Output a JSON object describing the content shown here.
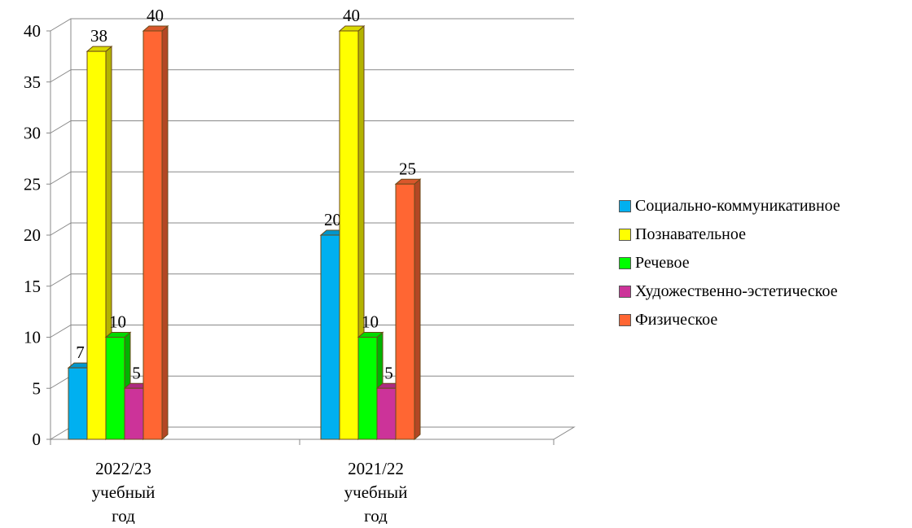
{
  "chart_data": {
    "type": "bar",
    "categories": [
      [
        "2022/23",
        "учебный",
        "год"
      ],
      [
        "2021/22",
        "учебный",
        "год"
      ]
    ],
    "series": [
      {
        "name": "Социально-коммуникативное",
        "color": "#00b0f0",
        "values": [
          7,
          20
        ]
      },
      {
        "name": "Познавательное",
        "color": "#ffff00",
        "values": [
          38,
          40
        ]
      },
      {
        "name": "Речевое",
        "color": "#00ff00",
        "values": [
          10,
          10
        ]
      },
      {
        "name": "Художественно-эстетическое",
        "color": "#cc3399",
        "values": [
          5,
          5
        ]
      },
      {
        "name": "Физическое",
        "color": "#ff6633",
        "values": [
          40,
          25
        ]
      }
    ],
    "ylim": [
      0,
      40
    ],
    "yticks": [
      0,
      5,
      10,
      15,
      20,
      25,
      30,
      35,
      40
    ],
    "grid": true,
    "legend_position": "right",
    "data_labels": true,
    "three_d": true
  }
}
